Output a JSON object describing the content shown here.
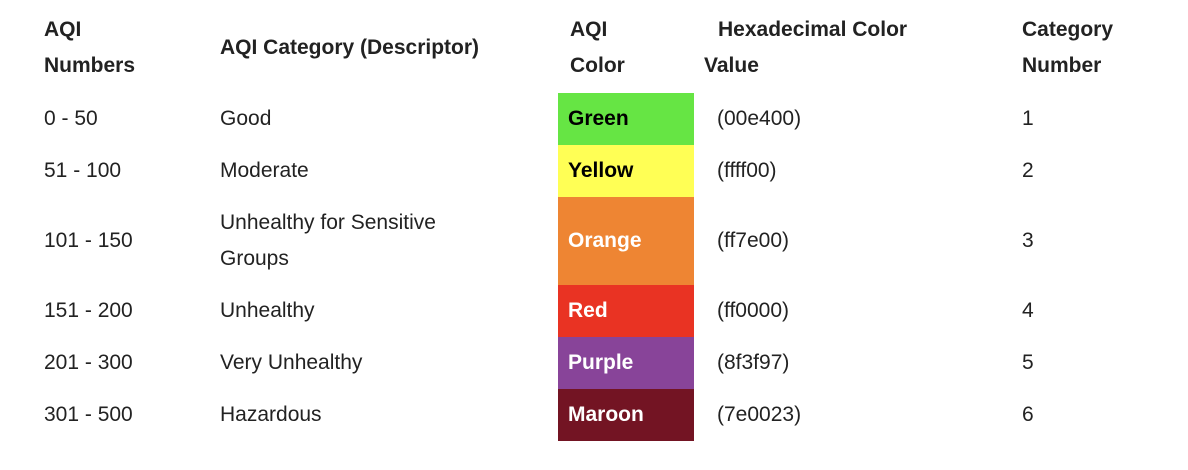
{
  "headers": {
    "aqi_numbers": [
      "AQI",
      "Numbers"
    ],
    "category": "AQI Category (Descriptor)",
    "color": [
      "AQI",
      "Color"
    ],
    "hex": [
      "Hexadecimal Color",
      "Value"
    ],
    "number": [
      "Category",
      "Number"
    ]
  },
  "rows": [
    {
      "range": "0 - 50",
      "category": "Good",
      "color_name": "Green",
      "hex": "(00e400)",
      "number": "1",
      "swatch_color": "#66e544",
      "text_color": "#000000"
    },
    {
      "range": "51 - 100",
      "category": "Moderate",
      "color_name": "Yellow",
      "hex": "(ffff00)",
      "number": "2",
      "swatch_color": "#ffff55",
      "text_color": "#000000"
    },
    {
      "range": "101 - 150",
      "category_lines": [
        "Unhealthy for Sensitive",
        "Groups"
      ],
      "color_name": "Orange",
      "hex": "(ff7e00)",
      "number": "3",
      "swatch_color": "#ee8533",
      "text_color": "#ffffff"
    },
    {
      "range": "151 - 200",
      "category": "Unhealthy",
      "color_name": "Red",
      "hex": "(ff0000)",
      "number": "4",
      "swatch_color": "#e93323",
      "text_color": "#ffffff"
    },
    {
      "range": "201 - 300",
      "category": "Very Unhealthy",
      "color_name": "Purple",
      "hex": "(8f3f97)",
      "number": "5",
      "swatch_color": "#884499",
      "text_color": "#ffffff"
    },
    {
      "range": "301 - 500",
      "category": "Hazardous",
      "color_name": "Maroon",
      "hex": "(7e0023)",
      "number": "6",
      "swatch_color": "#731423",
      "text_color": "#ffffff"
    }
  ]
}
